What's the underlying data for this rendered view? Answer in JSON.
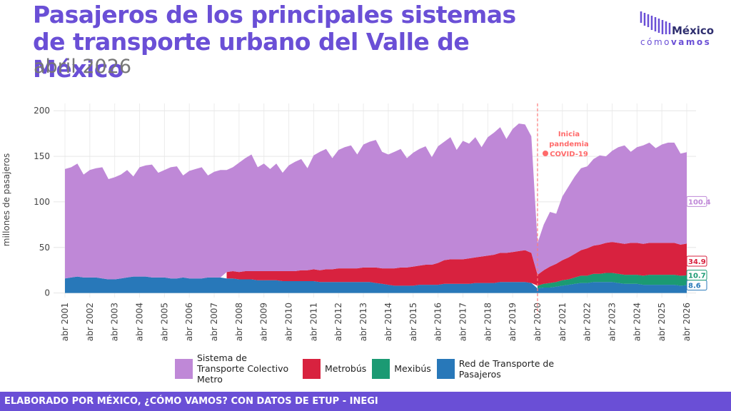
{
  "title": "Pasajeros de los principales sistemas de transporte urbano del Valle de México",
  "subtitle": "abril 2026",
  "logo": {
    "name": "México",
    "tagline_a": "cómo",
    "tagline_b": "vamos"
  },
  "footer": "ELABORADO POR MÉXICO, ¿CÓMO VAMOS? CON DATOS DE ETUP - INEGI",
  "chart_data": {
    "type": "stacked-area",
    "y_label": "millones de pasajeros",
    "annotation": [
      "Inicia",
      "pandemia",
      "COVID-19"
    ],
    "ylim": [
      -5,
      208
    ],
    "yticks": [
      0,
      50,
      100,
      150,
      200
    ],
    "grid": true,
    "categories": [
      "abr 2001",
      null,
      null,
      null,
      "abr 2002",
      null,
      null,
      null,
      "abr 2003",
      null,
      null,
      null,
      "abr 2004",
      null,
      null,
      null,
      "abr 2005",
      null,
      null,
      null,
      "abr 2006",
      null,
      null,
      null,
      "abr 2007",
      null,
      null,
      null,
      "abr 2008",
      null,
      null,
      null,
      "abr 2009",
      null,
      null,
      null,
      "abr 2010",
      null,
      null,
      null,
      "abr 2011",
      null,
      null,
      null,
      "abr 2012",
      null,
      null,
      null,
      "abr 2013",
      null,
      null,
      null,
      "abr 2014",
      null,
      null,
      null,
      "abr 2015",
      null,
      null,
      null,
      "abr 2016",
      null,
      null,
      null,
      "abr 2017",
      null,
      null,
      null,
      "abr 2018",
      null,
      null,
      null,
      "abr 2019",
      null,
      null,
      null,
      "abr 2020",
      null,
      null,
      null,
      "abr 2021",
      null,
      null,
      null,
      "abr 2022",
      null,
      null,
      null,
      "abr 2023",
      null,
      null,
      null,
      "abr 2024",
      null,
      null,
      null,
      "abr 2025",
      null,
      null,
      null,
      "abr 2026"
    ],
    "series": [
      {
        "name": "Sistema de Transporte Colectivo Metro",
        "color": "#bf88d7",
        "values": [
          120,
          121,
          124,
          113,
          118,
          120,
          122,
          110,
          112,
          114,
          118,
          110,
          120,
          122,
          124,
          115,
          118,
          122,
          123,
          112,
          118,
          120,
          122,
          112,
          116,
          118,
          112,
          114,
          120,
          124,
          128,
          114,
          118,
          112,
          118,
          108,
          116,
          120,
          122,
          112,
          125,
          130,
          132,
          122,
          130,
          133,
          135,
          125,
          135,
          138,
          140,
          128,
          125,
          128,
          130,
          120,
          125,
          128,
          130,
          118,
          128,
          130,
          134,
          120,
          130,
          126,
          132,
          120,
          130,
          134,
          138,
          125,
          135,
          140,
          138,
          128,
          35,
          50,
          60,
          55,
          70,
          78,
          85,
          90,
          90,
          95,
          98,
          95,
          100,
          105,
          108,
          100,
          105,
          108,
          110,
          104,
          108,
          110,
          110,
          100,
          100.4
        ]
      },
      {
        "name": "Metrobús",
        "color": "#d8223f",
        "values": [
          null,
          null,
          null,
          null,
          null,
          null,
          null,
          null,
          null,
          null,
          null,
          null,
          null,
          null,
          null,
          null,
          null,
          null,
          null,
          null,
          null,
          null,
          null,
          null,
          null,
          null,
          7,
          8,
          8,
          9,
          9,
          10,
          10,
          10,
          10,
          11,
          11,
          11,
          12,
          12,
          13,
          13,
          14,
          14,
          15,
          15,
          15,
          15,
          16,
          16,
          17,
          17,
          18,
          19,
          20,
          20,
          21,
          21,
          22,
          22,
          24,
          26,
          27,
          27,
          27,
          28,
          28,
          29,
          30,
          31,
          32,
          32,
          33,
          34,
          35,
          33,
          12,
          15,
          18,
          20,
          22,
          24,
          26,
          28,
          30,
          31,
          32,
          33,
          34,
          34,
          34,
          35,
          35,
          35,
          35,
          35,
          35,
          35,
          35,
          34,
          34.9
        ]
      },
      {
        "name": "Mexibús",
        "color": "#1b9a73",
        "values": [
          null,
          null,
          null,
          null,
          null,
          null,
          null,
          null,
          null,
          null,
          null,
          null,
          null,
          null,
          null,
          null,
          null,
          null,
          null,
          null,
          null,
          null,
          null,
          null,
          null,
          null,
          null,
          null,
          null,
          null,
          null,
          null,
          null,
          null,
          null,
          null,
          null,
          null,
          null,
          null,
          null,
          null,
          null,
          null,
          null,
          null,
          null,
          null,
          null,
          null,
          null,
          null,
          null,
          null,
          null,
          null,
          null,
          null,
          null,
          null,
          null,
          null,
          null,
          null,
          null,
          null,
          null,
          null,
          null,
          null,
          null,
          null,
          null,
          null,
          null,
          null,
          3,
          4,
          5,
          5,
          6,
          6,
          7,
          8,
          8,
          9,
          9,
          10,
          10,
          10,
          10,
          10,
          10,
          10,
          11,
          11,
          11,
          11,
          11,
          11,
          10.7
        ]
      },
      {
        "name": "Red de Transporte de Pasajeros",
        "color": "#2878b9",
        "values": [
          16,
          17,
          18,
          17,
          17,
          17,
          16,
          15,
          15,
          16,
          17,
          18,
          18,
          18,
          17,
          17,
          17,
          16,
          16,
          17,
          16,
          16,
          16,
          17,
          17,
          17,
          16,
          16,
          15,
          15,
          15,
          14,
          14,
          14,
          14,
          13,
          13,
          13,
          13,
          13,
          13,
          12,
          12,
          12,
          12,
          12,
          12,
          12,
          12,
          12,
          11,
          10,
          9,
          8,
          8,
          8,
          8,
          9,
          9,
          9,
          9,
          10,
          10,
          10,
          10,
          10,
          11,
          11,
          11,
          11,
          12,
          12,
          12,
          12,
          12,
          11,
          5,
          6,
          6,
          7,
          8,
          9,
          10,
          11,
          11,
          12,
          12,
          12,
          12,
          11,
          10,
          10,
          10,
          9,
          9,
          9,
          9,
          9,
          9,
          8,
          8.6
        ]
      }
    ]
  }
}
